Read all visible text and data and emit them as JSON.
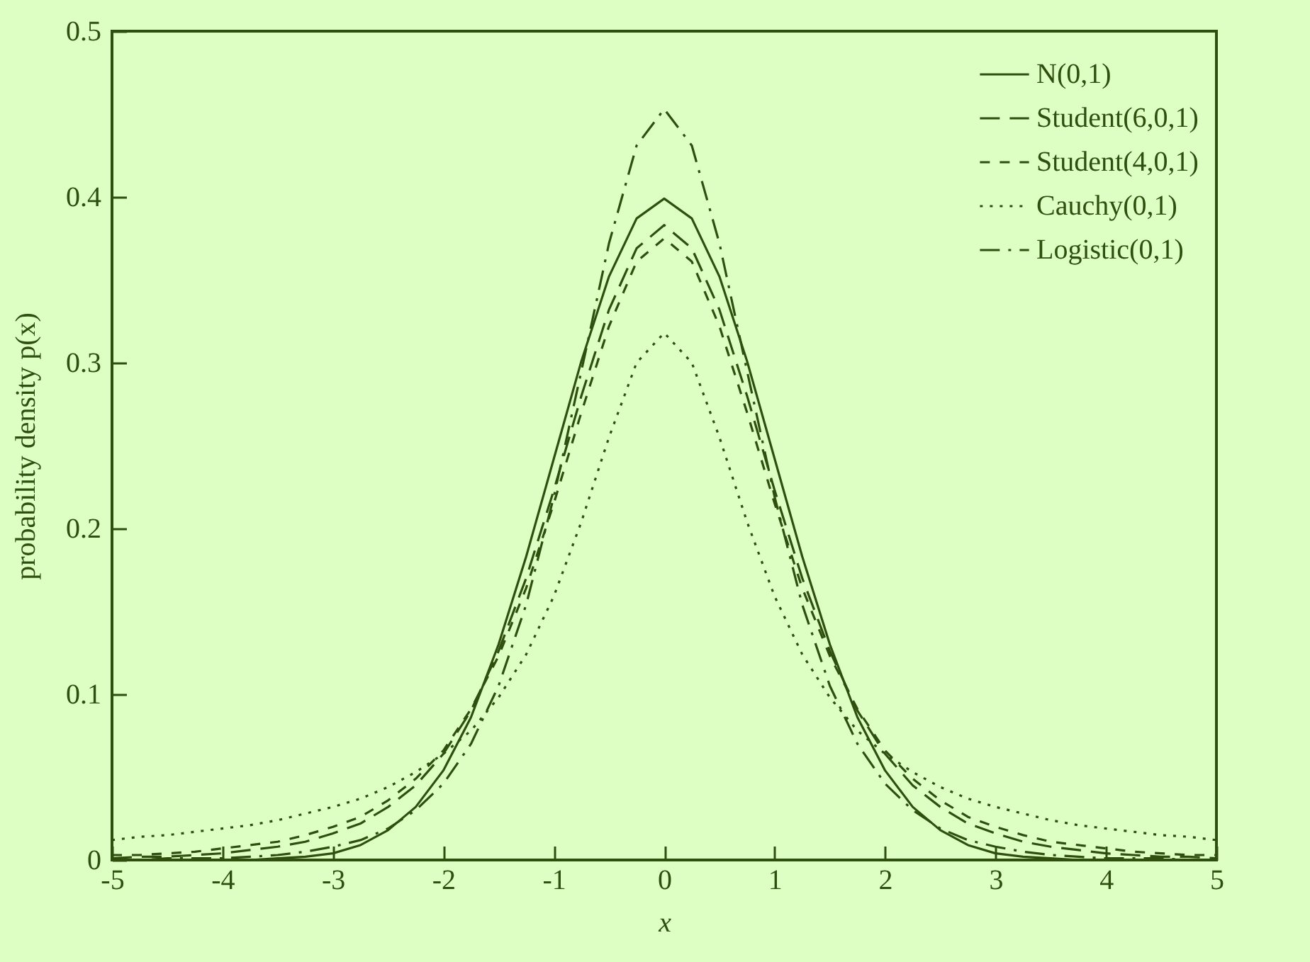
{
  "chart_data": {
    "type": "line",
    "xlabel": "x",
    "ylabel": "probability density p(x)",
    "x": [
      -5,
      -4.75,
      -4.5,
      -4.25,
      -4,
      -3.75,
      -3.5,
      -3.25,
      -3,
      -2.75,
      -2.5,
      -2.25,
      -2,
      -1.75,
      -1.5,
      -1.25,
      -1,
      -0.75,
      -0.5,
      -0.25,
      0,
      0.25,
      0.5,
      0.75,
      1,
      1.25,
      1.5,
      1.75,
      2,
      2.25,
      2.5,
      2.75,
      3,
      3.25,
      3.5,
      3.75,
      4,
      4.25,
      4.5,
      4.75,
      5
    ],
    "xlim": [
      -5,
      5
    ],
    "xticks": [
      -5,
      -4,
      -3,
      -2,
      -1,
      0,
      1,
      2,
      3,
      4,
      5
    ],
    "ylim": [
      0,
      0.5
    ],
    "yticks": [
      0,
      0.1,
      0.2,
      0.3,
      0.4,
      0.5
    ],
    "grid": false,
    "legend": "top right",
    "marker": "none",
    "series": [
      {
        "name": "N(0,1)",
        "color": "#2f4f0f",
        "line_style": "solid",
        "values": [
          0,
          0,
          0,
          0,
          0,
          0,
          0.001,
          0.002,
          0.004,
          0.009,
          0.018,
          0.032,
          0.054,
          0.086,
          0.13,
          0.183,
          0.242,
          0.301,
          0.352,
          0.387,
          0.399,
          0.387,
          0.352,
          0.301,
          0.242,
          0.183,
          0.13,
          0.086,
          0.054,
          0.032,
          0.018,
          0.009,
          0.004,
          0.002,
          0.001,
          0,
          0,
          0,
          0,
          0,
          0
        ]
      },
      {
        "name": "Student(6,0,1)",
        "color": "#2f4f0f",
        "line_style": "dashed",
        "values": [
          0.001,
          0.002,
          0.002,
          0.003,
          0.004,
          0.006,
          0.008,
          0.011,
          0.016,
          0.022,
          0.032,
          0.045,
          0.064,
          0.09,
          0.126,
          0.17,
          0.223,
          0.28,
          0.332,
          0.369,
          0.383,
          0.369,
          0.332,
          0.28,
          0.223,
          0.17,
          0.126,
          0.09,
          0.064,
          0.045,
          0.032,
          0.022,
          0.016,
          0.011,
          0.008,
          0.006,
          0.004,
          0.003,
          0.002,
          0.002,
          0.001
        ]
      },
      {
        "name": "Student(4,0,1)",
        "color": "#2f4f0f",
        "line_style": "shortdashed",
        "values": [
          0.003,
          0.003,
          0.004,
          0.005,
          0.007,
          0.009,
          0.011,
          0.015,
          0.02,
          0.026,
          0.036,
          0.049,
          0.066,
          0.091,
          0.123,
          0.164,
          0.215,
          0.27,
          0.322,
          0.361,
          0.375,
          0.361,
          0.322,
          0.27,
          0.215,
          0.164,
          0.123,
          0.091,
          0.066,
          0.049,
          0.036,
          0.026,
          0.02,
          0.015,
          0.011,
          0.009,
          0.007,
          0.005,
          0.004,
          0.003,
          0.003
        ]
      },
      {
        "name": "Cauchy(0,1)",
        "color": "#2f4f0f",
        "line_style": "dotted",
        "values": [
          0.012,
          0.014,
          0.015,
          0.017,
          0.019,
          0.021,
          0.024,
          0.028,
          0.032,
          0.037,
          0.044,
          0.053,
          0.064,
          0.078,
          0.098,
          0.124,
          0.159,
          0.204,
          0.255,
          0.3,
          0.318,
          0.3,
          0.255,
          0.204,
          0.159,
          0.124,
          0.098,
          0.078,
          0.064,
          0.053,
          0.044,
          0.037,
          0.032,
          0.028,
          0.024,
          0.021,
          0.019,
          0.017,
          0.015,
          0.014,
          0.012
        ]
      },
      {
        "name": "Logistic(0,1)",
        "color": "#2f4f0f",
        "line_style": "dashdot",
        "values": [
          0,
          0,
          0.001,
          0.001,
          0.001,
          0.002,
          0.003,
          0.005,
          0.008,
          0.012,
          0.019,
          0.03,
          0.046,
          0.07,
          0.105,
          0.154,
          0.219,
          0.295,
          0.372,
          0.431,
          0.453,
          0.431,
          0.372,
          0.295,
          0.219,
          0.154,
          0.105,
          0.07,
          0.046,
          0.03,
          0.019,
          0.012,
          0.008,
          0.005,
          0.003,
          0.002,
          0.001,
          0.001,
          0.001,
          0,
          0
        ]
      }
    ]
  }
}
